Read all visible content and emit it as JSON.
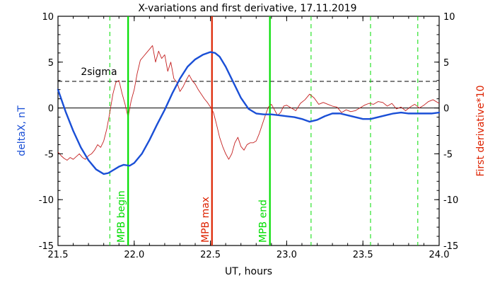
{
  "chart_data": {
    "type": "line",
    "title": "X-variations and first derivative, 17.11.2019",
    "xlabel": "UT, hours",
    "ylabel_left": "deltaX, nT",
    "ylabel_right": "First derivative*10",
    "xlim": [
      21.5,
      24.0
    ],
    "ylim": [
      -15,
      10
    ],
    "xticks": [
      21.5,
      22.0,
      22.5,
      23.0,
      23.5,
      24.0
    ],
    "xtick_labels": [
      "21.5",
      "22.0",
      "22.5",
      "23.0",
      "23.5",
      "24.0"
    ],
    "yticks": [
      -15,
      -10,
      -5,
      0,
      5,
      10
    ],
    "ytick_labels_left": [
      "-15",
      "-10",
      "-5",
      "0",
      "5",
      "10"
    ],
    "ytick_labels_right": [
      "-15",
      "-10",
      "-5",
      "0",
      "5",
      "10"
    ],
    "zero_line": 0,
    "sigma_line": {
      "label": "2sigma",
      "value": 2.9,
      "color": "#000000"
    },
    "series": [
      {
        "name": "deltaX, nT",
        "color": "#1a4fd6",
        "axis": "left",
        "x": [
          21.5,
          21.55,
          21.6,
          21.65,
          21.7,
          21.75,
          21.8,
          21.83,
          21.86,
          21.9,
          21.93,
          21.97,
          22.0,
          22.05,
          22.1,
          22.15,
          22.2,
          22.25,
          22.3,
          22.35,
          22.4,
          22.45,
          22.5,
          22.53,
          22.56,
          22.6,
          22.65,
          22.7,
          22.75,
          22.8,
          22.85,
          22.9,
          22.95,
          23.0,
          23.05,
          23.1,
          23.15,
          23.2,
          23.25,
          23.3,
          23.35,
          23.4,
          23.45,
          23.5,
          23.55,
          23.6,
          23.65,
          23.7,
          23.75,
          23.8,
          23.85,
          23.9,
          23.95,
          24.0
        ],
        "y": [
          2.0,
          -0.4,
          -2.5,
          -4.3,
          -5.7,
          -6.7,
          -7.2,
          -7.1,
          -6.8,
          -6.4,
          -6.2,
          -6.3,
          -6.0,
          -5.0,
          -3.5,
          -1.8,
          -0.2,
          1.6,
          3.2,
          4.5,
          5.3,
          5.8,
          6.1,
          6.0,
          5.6,
          4.5,
          2.8,
          1.1,
          -0.1,
          -0.6,
          -0.7,
          -0.7,
          -0.8,
          -0.9,
          -1.0,
          -1.2,
          -1.5,
          -1.3,
          -0.9,
          -0.6,
          -0.6,
          -0.8,
          -1.0,
          -1.2,
          -1.2,
          -1.0,
          -0.8,
          -0.6,
          -0.5,
          -0.6,
          -0.6,
          -0.6,
          -0.6,
          -0.5
        ]
      },
      {
        "name": "First derivative*10",
        "color": "#c42020",
        "axis": "right",
        "x": [
          21.5,
          21.52,
          21.54,
          21.56,
          21.58,
          21.6,
          21.62,
          21.64,
          21.66,
          21.68,
          21.7,
          21.72,
          21.74,
          21.76,
          21.78,
          21.8,
          21.82,
          21.84,
          21.86,
          21.88,
          21.9,
          21.92,
          21.94,
          21.96,
          21.98,
          22.0,
          22.02,
          22.04,
          22.06,
          22.08,
          22.1,
          22.12,
          22.14,
          22.16,
          22.18,
          22.2,
          22.22,
          22.24,
          22.26,
          22.28,
          22.3,
          22.32,
          22.34,
          22.36,
          22.38,
          22.4,
          22.42,
          22.44,
          22.46,
          22.48,
          22.5,
          22.52,
          22.54,
          22.56,
          22.58,
          22.6,
          22.62,
          22.64,
          22.66,
          22.68,
          22.7,
          22.72,
          22.74,
          22.76,
          22.78,
          22.8,
          22.82,
          22.84,
          22.86,
          22.88,
          22.9,
          22.92,
          22.94,
          22.96,
          22.98,
          23.0,
          23.03,
          23.06,
          23.09,
          23.12,
          23.15,
          23.18,
          23.21,
          23.24,
          23.27,
          23.3,
          23.33,
          23.36,
          23.39,
          23.42,
          23.45,
          23.48,
          23.51,
          23.54,
          23.57,
          23.6,
          23.63,
          23.66,
          23.69,
          23.72,
          23.75,
          23.78,
          23.81,
          23.84,
          23.87,
          23.9,
          23.93,
          23.96,
          24.0
        ],
        "y": [
          -4.8,
          -5.2,
          -5.5,
          -5.7,
          -5.4,
          -5.6,
          -5.3,
          -5.0,
          -5.4,
          -5.6,
          -5.2,
          -5.0,
          -4.6,
          -4.0,
          -4.3,
          -3.6,
          -2.3,
          -0.5,
          1.5,
          2.8,
          3.0,
          1.6,
          0.4,
          -1.0,
          0.8,
          2.0,
          3.8,
          5.2,
          5.6,
          6.0,
          6.4,
          6.8,
          5.0,
          6.2,
          5.4,
          5.8,
          4.0,
          5.0,
          3.2,
          2.8,
          1.8,
          2.3,
          3.0,
          3.6,
          3.0,
          2.6,
          2.0,
          1.5,
          1.0,
          0.6,
          0.1,
          -0.5,
          -1.8,
          -3.2,
          -4.2,
          -5.0,
          -5.6,
          -5.0,
          -3.8,
          -3.2,
          -4.2,
          -4.6,
          -4.0,
          -3.8,
          -3.8,
          -3.6,
          -2.8,
          -1.8,
          -0.8,
          0.1,
          0.4,
          -0.2,
          -0.8,
          -0.5,
          0.2,
          0.3,
          0.0,
          -0.3,
          0.5,
          0.9,
          1.5,
          1.1,
          0.4,
          0.6,
          0.4,
          0.2,
          0.1,
          -0.5,
          -0.2,
          -0.4,
          -0.3,
          0.0,
          0.3,
          0.5,
          0.4,
          0.7,
          0.6,
          0.2,
          0.5,
          -0.1,
          0.1,
          -0.3,
          0.1,
          0.4,
          0.0,
          0.3,
          0.7,
          0.9,
          0.5
        ]
      }
    ],
    "vertical_markers": [
      {
        "label": "MPB begin",
        "x": 21.96,
        "color": "#00dd00",
        "style": "solid",
        "labeled": true
      },
      {
        "label": "MPB max",
        "x": 22.51,
        "color": "#dd2200",
        "style": "solid",
        "labeled": true
      },
      {
        "label": "MPB end",
        "x": 22.89,
        "color": "#00dd00",
        "style": "solid",
        "labeled": true
      },
      {
        "label": "",
        "x": 21.84,
        "color": "#00dd00",
        "style": "dashed",
        "labeled": false
      },
      {
        "label": "",
        "x": 23.16,
        "color": "#00dd00",
        "style": "dashed",
        "labeled": false
      },
      {
        "label": "",
        "x": 23.55,
        "color": "#00dd00",
        "style": "dashed",
        "labeled": false
      },
      {
        "label": "",
        "x": 23.86,
        "color": "#00dd00",
        "style": "dashed",
        "labeled": false
      }
    ],
    "grid": false,
    "legend": "none"
  }
}
